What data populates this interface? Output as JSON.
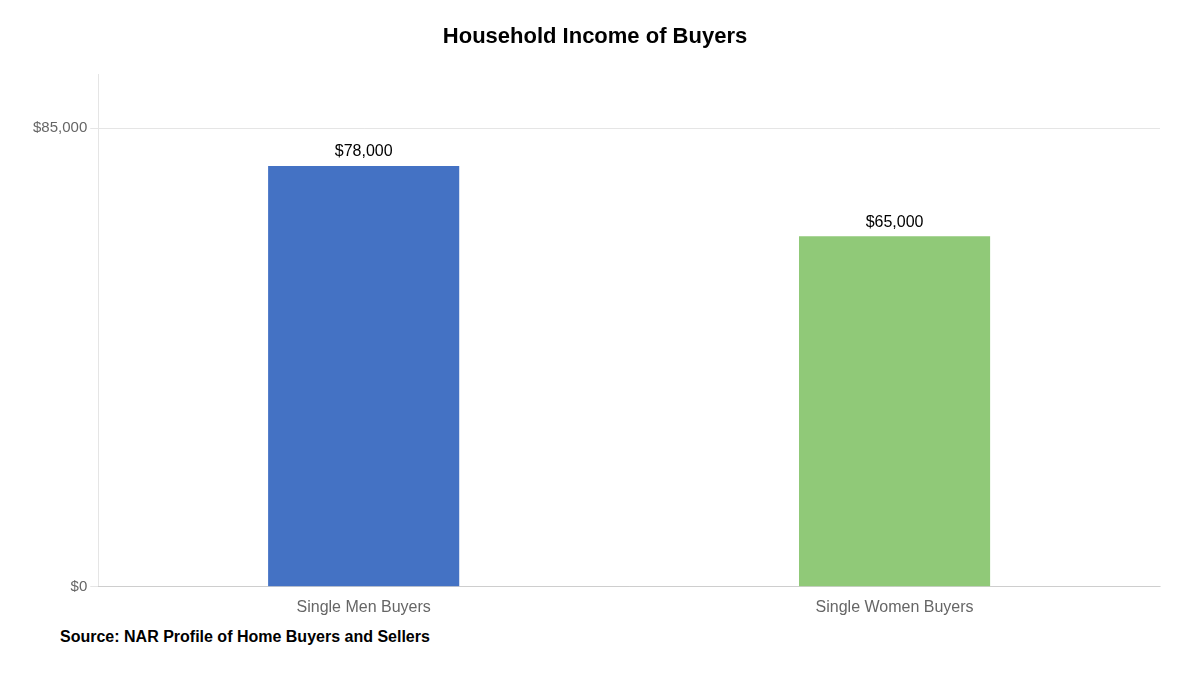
{
  "chart_data": {
    "type": "bar",
    "title": "Household Income of Buyers",
    "categories": [
      "Single Men Buyers",
      "Single Women Buyers"
    ],
    "values": [
      78000,
      65000
    ],
    "value_labels": [
      "$78,000",
      "$65,000"
    ],
    "colors": [
      "#4472C4",
      "#90C978"
    ],
    "ylim": [
      0,
      95000
    ],
    "yticks": [
      {
        "value": 0,
        "label": "$0"
      },
      {
        "value": 85000,
        "label": "$85,000"
      }
    ],
    "grid": true,
    "data_labels": true,
    "annotations": [
      "Source: NAR Profile of Home Buyers and Sellers"
    ]
  }
}
